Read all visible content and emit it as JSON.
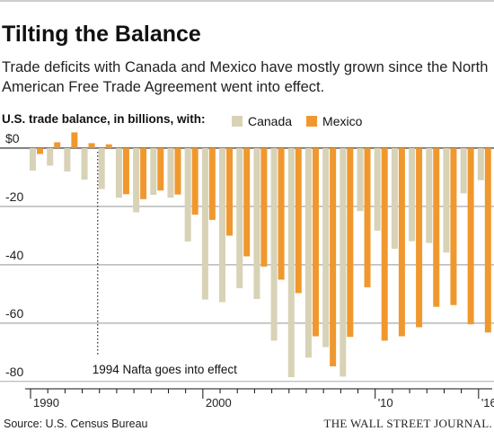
{
  "chart_data": {
    "type": "bar",
    "title": "Tilting the Balance",
    "subtitle": "Trade deficits with Canada and Mexico have mostly grown since the North American Free Trade Agreement went into effect.",
    "legend_title": "U.S. trade balance, in billions, with:",
    "annotation": "1994 Nafta goes into effect",
    "annotation_index": 4,
    "source": "Source: U.S. Census Bureau",
    "credit": "THE WALL STREET JOURNAL.",
    "categories": [
      "1990",
      null,
      null,
      null,
      null,
      null,
      null,
      null,
      null,
      null,
      "2000",
      null,
      null,
      null,
      null,
      null,
      null,
      null,
      null,
      null,
      "'10",
      null,
      null,
      null,
      null,
      null,
      "'16"
    ],
    "series": [
      {
        "name": "Canada",
        "color": "#d8d2b6",
        "values": [
          -7.7,
          -6,
          -8,
          -10.8,
          -14,
          -17,
          -22,
          -16,
          -17,
          -32,
          -51.9,
          -52.8,
          -48,
          -51.7,
          -66,
          -78.5,
          -71.8,
          -68.2,
          -78.3,
          -21.6,
          -28.3,
          -34.5,
          -31.9,
          -32.5,
          -35.8,
          -15.5,
          -11
        ]
      },
      {
        "name": "Mexico",
        "color": "#f0982e",
        "values": [
          -2,
          2,
          5.4,
          1.7,
          1.3,
          -15.8,
          -17.5,
          -14.5,
          -15.9,
          -22.8,
          -24.6,
          -30,
          -37.1,
          -40.6,
          -45.1,
          -49.7,
          -64.5,
          -74.8,
          -64.7,
          -47.7,
          -66,
          -64.5,
          -61.4,
          -54.4,
          -53.8,
          -60.4,
          -63.2
        ]
      }
    ],
    "ylim": [
      -82.5,
      4.6
    ],
    "yticks": [
      {
        "value": 0,
        "label": "$0"
      },
      -20,
      -40,
      -60,
      -80
    ],
    "grid": true
  }
}
